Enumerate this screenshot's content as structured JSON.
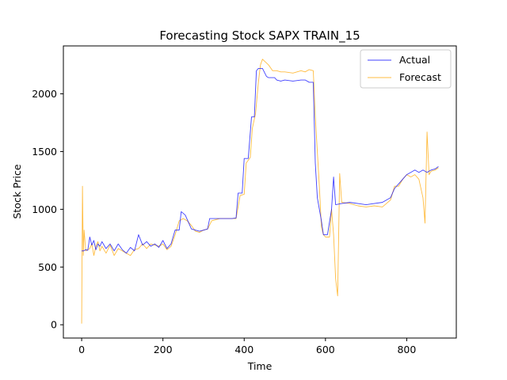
{
  "chart_data": {
    "type": "line",
    "title": "Forecasting Stock SAPX TRAIN_15",
    "xlabel": "Time",
    "ylabel": "Stock Price",
    "xlim": [
      -45,
      922
    ],
    "ylim": [
      -115,
      2415
    ],
    "xticks": [
      0,
      200,
      400,
      600,
      800
    ],
    "yticks": [
      0,
      500,
      1000,
      1500,
      2000
    ],
    "grid": false,
    "legend": "top-right",
    "series": [
      {
        "name": "Actual",
        "color": "#0000ff",
        "points": [
          [
            0,
            640
          ],
          [
            5,
            640
          ],
          [
            10,
            650
          ],
          [
            15,
            645
          ],
          [
            20,
            760
          ],
          [
            25,
            690
          ],
          [
            30,
            730
          ],
          [
            35,
            650
          ],
          [
            40,
            700
          ],
          [
            45,
            680
          ],
          [
            50,
            720
          ],
          [
            60,
            660
          ],
          [
            70,
            700
          ],
          [
            80,
            640
          ],
          [
            90,
            700
          ],
          [
            100,
            650
          ],
          [
            110,
            620
          ],
          [
            120,
            670
          ],
          [
            130,
            640
          ],
          [
            140,
            780
          ],
          [
            150,
            690
          ],
          [
            160,
            720
          ],
          [
            170,
            680
          ],
          [
            180,
            700
          ],
          [
            190,
            670
          ],
          [
            200,
            730
          ],
          [
            210,
            660
          ],
          [
            220,
            700
          ],
          [
            230,
            820
          ],
          [
            240,
            820
          ],
          [
            245,
            980
          ],
          [
            255,
            950
          ],
          [
            265,
            870
          ],
          [
            270,
            830
          ],
          [
            280,
            820
          ],
          [
            290,
            810
          ],
          [
            300,
            820
          ],
          [
            310,
            830
          ],
          [
            315,
            920
          ],
          [
            340,
            920
          ],
          [
            370,
            920
          ],
          [
            380,
            925
          ],
          [
            385,
            1140
          ],
          [
            395,
            1140
          ],
          [
            400,
            1440
          ],
          [
            410,
            1440
          ],
          [
            418,
            1800
          ],
          [
            425,
            1800
          ],
          [
            430,
            2200
          ],
          [
            435,
            2220
          ],
          [
            445,
            2220
          ],
          [
            455,
            2150
          ],
          [
            460,
            2140
          ],
          [
            475,
            2140
          ],
          [
            480,
            2120
          ],
          [
            490,
            2110
          ],
          [
            500,
            2120
          ],
          [
            520,
            2110
          ],
          [
            540,
            2120
          ],
          [
            550,
            2120
          ],
          [
            560,
            2100
          ],
          [
            570,
            2100
          ],
          [
            575,
            1400
          ],
          [
            580,
            1100
          ],
          [
            590,
            900
          ],
          [
            595,
            780
          ],
          [
            605,
            780
          ],
          [
            615,
            1000
          ],
          [
            620,
            1280
          ],
          [
            625,
            1040
          ],
          [
            640,
            1050
          ],
          [
            660,
            1060
          ],
          [
            680,
            1050
          ],
          [
            700,
            1040
          ],
          [
            720,
            1050
          ],
          [
            740,
            1060
          ],
          [
            760,
            1100
          ],
          [
            770,
            1180
          ],
          [
            780,
            1220
          ],
          [
            790,
            1260
          ],
          [
            800,
            1300
          ],
          [
            810,
            1320
          ],
          [
            820,
            1340
          ],
          [
            830,
            1320
          ],
          [
            840,
            1340
          ],
          [
            850,
            1320
          ],
          [
            860,
            1340
          ],
          [
            870,
            1350
          ],
          [
            878,
            1370
          ]
        ]
      },
      {
        "name": "Forecast",
        "color": "#ffa500",
        "points": [
          [
            0,
            10
          ],
          [
            2,
            1200
          ],
          [
            4,
            600
          ],
          [
            6,
            820
          ],
          [
            10,
            640
          ],
          [
            15,
            650
          ],
          [
            20,
            660
          ],
          [
            25,
            700
          ],
          [
            30,
            600
          ],
          [
            35,
            680
          ],
          [
            40,
            720
          ],
          [
            45,
            640
          ],
          [
            50,
            680
          ],
          [
            60,
            620
          ],
          [
            70,
            690
          ],
          [
            80,
            600
          ],
          [
            90,
            660
          ],
          [
            100,
            640
          ],
          [
            110,
            620
          ],
          [
            120,
            600
          ],
          [
            130,
            650
          ],
          [
            140,
            660
          ],
          [
            150,
            700
          ],
          [
            160,
            660
          ],
          [
            170,
            700
          ],
          [
            180,
            690
          ],
          [
            190,
            680
          ],
          [
            200,
            700
          ],
          [
            210,
            650
          ],
          [
            220,
            680
          ],
          [
            230,
            780
          ],
          [
            240,
            900
          ],
          [
            250,
            920
          ],
          [
            260,
            900
          ],
          [
            270,
            860
          ],
          [
            280,
            810
          ],
          [
            290,
            800
          ],
          [
            300,
            820
          ],
          [
            310,
            830
          ],
          [
            320,
            900
          ],
          [
            340,
            920
          ],
          [
            360,
            920
          ],
          [
            380,
            920
          ],
          [
            390,
            1120
          ],
          [
            400,
            1130
          ],
          [
            405,
            1400
          ],
          [
            415,
            1450
          ],
          [
            420,
            1700
          ],
          [
            428,
            1830
          ],
          [
            435,
            2100
          ],
          [
            440,
            2250
          ],
          [
            445,
            2300
          ],
          [
            460,
            2250
          ],
          [
            470,
            2200
          ],
          [
            480,
            2200
          ],
          [
            490,
            2190
          ],
          [
            500,
            2190
          ],
          [
            520,
            2180
          ],
          [
            540,
            2200
          ],
          [
            550,
            2190
          ],
          [
            560,
            2210
          ],
          [
            570,
            2200
          ],
          [
            575,
            1800
          ],
          [
            580,
            1500
          ],
          [
            585,
            1200
          ],
          [
            590,
            850
          ],
          [
            595,
            780
          ],
          [
            600,
            760
          ],
          [
            610,
            760
          ],
          [
            615,
            1000
          ],
          [
            620,
            780
          ],
          [
            625,
            400
          ],
          [
            630,
            250
          ],
          [
            635,
            1310
          ],
          [
            640,
            1060
          ],
          [
            660,
            1050
          ],
          [
            680,
            1030
          ],
          [
            700,
            1020
          ],
          [
            720,
            1030
          ],
          [
            740,
            1020
          ],
          [
            760,
            1080
          ],
          [
            770,
            1200
          ],
          [
            780,
            1200
          ],
          [
            790,
            1260
          ],
          [
            800,
            1300
          ],
          [
            810,
            1280
          ],
          [
            820,
            1300
          ],
          [
            830,
            1260
          ],
          [
            840,
            1100
          ],
          [
            845,
            880
          ],
          [
            850,
            1670
          ],
          [
            855,
            1300
          ],
          [
            860,
            1330
          ],
          [
            870,
            1340
          ],
          [
            878,
            1360
          ]
        ]
      }
    ]
  }
}
